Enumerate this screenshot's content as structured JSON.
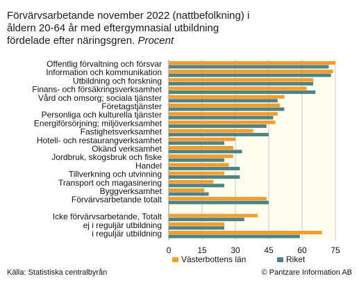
{
  "title": {
    "line1": "Förvärvsarbetande november 2022 (nattbefolkning) i",
    "line2": "åldern 20-64 år med eftergymnasial utbildning",
    "line3": "fördelade efter näringsgren.",
    "unit": "Procent"
  },
  "footer": {
    "source": "Källa: Statistiska centralbyrån",
    "copyright": "© Pantzare Information AB"
  },
  "colors": {
    "vasterbotten": "#f39c2b",
    "riket": "#4f8281",
    "plot_bg": "#fefef0",
    "grid": "#c8c8c8"
  },
  "chart_data": {
    "type": "bar",
    "orientation": "horizontal",
    "categories": [
      "Offentlig förvaltning och försvar",
      "Information och kommunikation",
      "Utbildning och forskning",
      "Finans- och försäkringsverksamhet",
      "Vård och omsorg; sociala tjänster",
      "Företagstjänster",
      "Personliga och kulturella tjänster",
      "Energiförsörjning; miljöverksamhet",
      "Fastighetsverksamhet",
      "Hotell- och restaurangverksamhet",
      "Okänd verksamhet",
      "Jordbruk, skogsbruk och fiske",
      "Handel",
      "Tillverkning och utvinning",
      "Transport och magasinering",
      "Byggverksamhet",
      "Förvärvsarbetande totalt",
      "",
      "Icke förvärvsarbetande, Totalt",
      "ej i reguljär utbildning",
      "i reguljär utbildning"
    ],
    "series": [
      {
        "name": "Västerbottens län",
        "values": [
          75,
          74,
          65,
          62,
          52,
          50,
          49,
          48,
          38,
          30,
          29,
          29,
          27,
          25,
          20,
          16,
          44,
          null,
          40,
          25,
          69
        ]
      },
      {
        "name": "Riket",
        "values": [
          72,
          73,
          65,
          66,
          49,
          52,
          47,
          44,
          45,
          25,
          33,
          25,
          32,
          32,
          25,
          18,
          45,
          null,
          34,
          25,
          59
        ]
      }
    ],
    "xlim": [
      0,
      75
    ],
    "xticks": [
      0,
      15,
      30,
      45,
      60,
      75
    ],
    "grid": true,
    "legend": "bottom"
  }
}
